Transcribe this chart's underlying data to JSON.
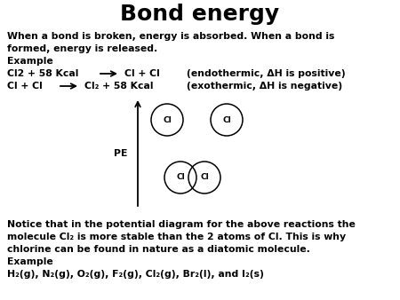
{
  "title": "Bond energy",
  "title_fontsize": 18,
  "bg_color": "#ffffff",
  "text_color": "#000000",
  "line1": "When a bond is broken, energy is absorbed. When a bond is",
  "line2": "formed, energy is released.",
  "line3": "Example",
  "line4a": "Cl2 + 58 Kcal",
  "line4b": "Cl + Cl",
  "line4c": "(endothermic, ΔH is positive)",
  "line5a": "Cl + Cl",
  "line5b": "Cl₂ + 58 Kcal",
  "line5c": "(exothermic, ΔH is negative)",
  "pe_label": "PE",
  "notice_line1": "Notice that in the potential diagram for the above reactions the",
  "notice_line2": "molecule Cl₂ is more stable than the 2 atoms of Cl. This is why",
  "notice_line3": "chlorine can be found in nature as a diatomic molecule.",
  "example2": "Example",
  "example2_line": "H₂(g), N₂(g), O₂(g), F₂(g), Cl₂(g), Br₂(l), and I₂(s)",
  "cl_label": "Cl",
  "fs_body": 7.8,
  "fs_cl": 6.5
}
